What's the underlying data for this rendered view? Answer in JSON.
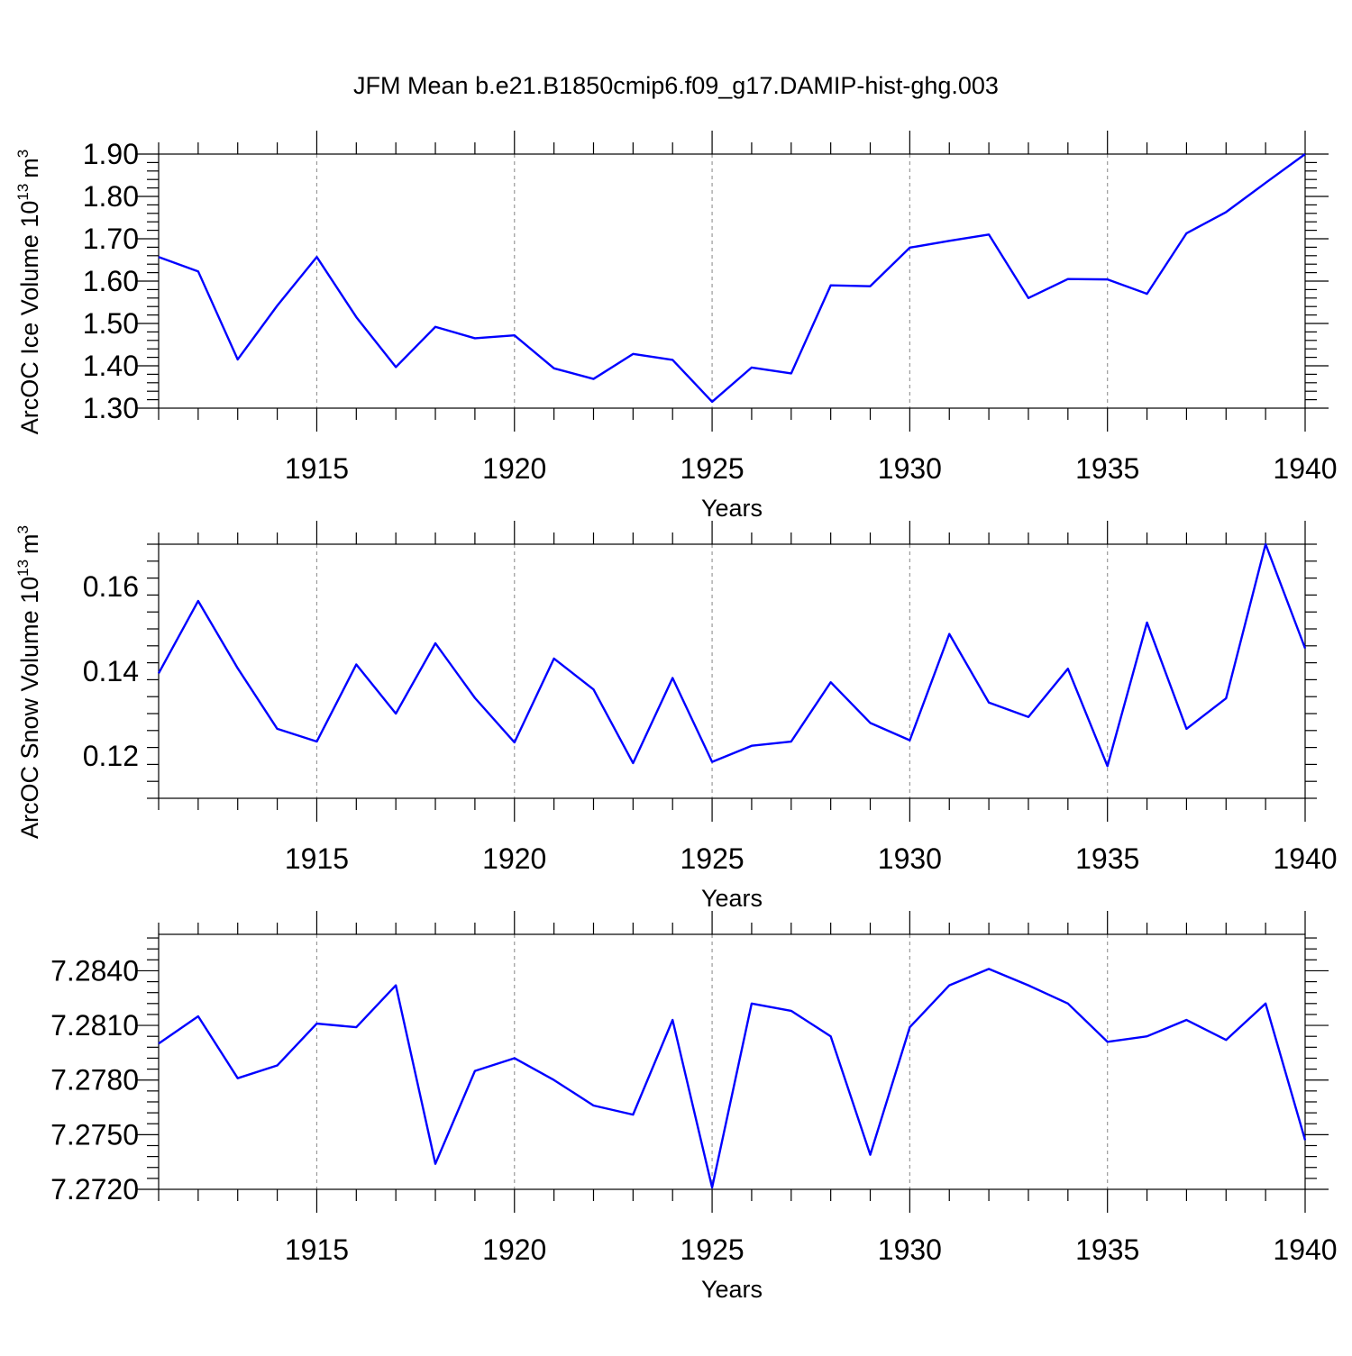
{
  "figure_title": "JFM Mean b.e21.B1850cmip6.f09_g17.DAMIP-hist-ghg.003",
  "colors": {
    "series": "#0000ff",
    "grid": "#999999",
    "axes": "#000000"
  },
  "chart_data": [
    {
      "type": "line",
      "title": "",
      "xlabel": "Years",
      "ylabel": "ArcOC Ice Volume 10",
      "ylabel_superscript": "13",
      "ylabel_unit": "m",
      "ylabel_unit_superscript": "3",
      "xlim": [
        1911,
        1940
      ],
      "ylim": [
        1.3,
        1.9
      ],
      "x_ticks": [
        "1915",
        "1920",
        "1925",
        "1930",
        "1935",
        "1940"
      ],
      "y_ticks": [
        "1.30",
        "1.40",
        "1.50",
        "1.60",
        "1.70",
        "1.80",
        "1.90"
      ],
      "grid": "vertical dashed at major x ticks",
      "x": [
        1911,
        1912,
        1913,
        1914,
        1915,
        1916,
        1917,
        1918,
        1919,
        1920,
        1921,
        1922,
        1923,
        1924,
        1925,
        1926,
        1927,
        1928,
        1929,
        1930,
        1931,
        1932,
        1933,
        1934,
        1935,
        1936,
        1937,
        1938,
        1939,
        1940
      ],
      "values": [
        1.657,
        1.623,
        1.415,
        1.542,
        1.657,
        1.515,
        1.397,
        1.492,
        1.465,
        1.472,
        1.394,
        1.369,
        1.428,
        1.414,
        1.315,
        1.396,
        1.382,
        1.59,
        1.588,
        1.679,
        1.695,
        1.71,
        1.56,
        1.605,
        1.604,
        1.57,
        1.713,
        1.763,
        1.832,
        1.9
      ]
    },
    {
      "type": "line",
      "title": "",
      "xlabel": "Years",
      "ylabel": "ArcOC Snow Volume 10",
      "ylabel_superscript": "13",
      "ylabel_unit": "m",
      "ylabel_unit_superscript": "3",
      "xlim": [
        1911,
        1940
      ],
      "ylim": [
        0.11,
        0.17
      ],
      "x_ticks": [
        "1915",
        "1920",
        "1925",
        "1930",
        "1935",
        "1940"
      ],
      "y_ticks": [
        "0.12",
        "0.14",
        "0.16"
      ],
      "grid": "vertical dashed at major x ticks",
      "x": [
        1911,
        1912,
        1913,
        1914,
        1915,
        1916,
        1917,
        1918,
        1919,
        1920,
        1921,
        1922,
        1923,
        1924,
        1925,
        1926,
        1927,
        1928,
        1929,
        1930,
        1931,
        1932,
        1933,
        1934,
        1935,
        1936,
        1937,
        1938,
        1939,
        1940
      ],
      "values": [
        0.1395,
        0.1566,
        0.1407,
        0.1264,
        0.1234,
        0.1416,
        0.13,
        0.1466,
        0.1337,
        0.1232,
        0.143,
        0.1357,
        0.1183,
        0.1384,
        0.1186,
        0.1224,
        0.1234,
        0.1374,
        0.1278,
        0.1237,
        0.1488,
        0.1326,
        0.1292,
        0.1406,
        0.1176,
        0.1515,
        0.1264,
        0.1336,
        0.17,
        0.1454
      ]
    },
    {
      "type": "line",
      "title": "",
      "xlabel": "Years",
      "ylabel": "",
      "xlim": [
        1911,
        1940
      ],
      "ylim": [
        7.272,
        7.286
      ],
      "x_ticks": [
        "1915",
        "1920",
        "1925",
        "1930",
        "1935",
        "1940"
      ],
      "y_ticks": [
        "7.2720",
        "7.2750",
        "7.2780",
        "7.2810",
        "7.2840"
      ],
      "grid": "vertical dashed at major x ticks",
      "x": [
        1911,
        1912,
        1913,
        1914,
        1915,
        1916,
        1917,
        1918,
        1919,
        1920,
        1921,
        1922,
        1923,
        1924,
        1925,
        1926,
        1927,
        1928,
        1929,
        1930,
        1931,
        1932,
        1933,
        1934,
        1935,
        1936,
        1937,
        1938,
        1939,
        1940
      ],
      "values": [
        7.28,
        7.2815,
        7.2781,
        7.2788,
        7.2811,
        7.2809,
        7.2832,
        7.2734,
        7.2785,
        7.2792,
        7.278,
        7.2766,
        7.2761,
        7.2813,
        7.2721,
        7.2822,
        7.2818,
        7.2804,
        7.2739,
        7.2809,
        7.2832,
        7.2841,
        7.2832,
        7.2822,
        7.2801,
        7.2804,
        7.2813,
        7.2802,
        7.2822,
        7.2747
      ]
    }
  ]
}
